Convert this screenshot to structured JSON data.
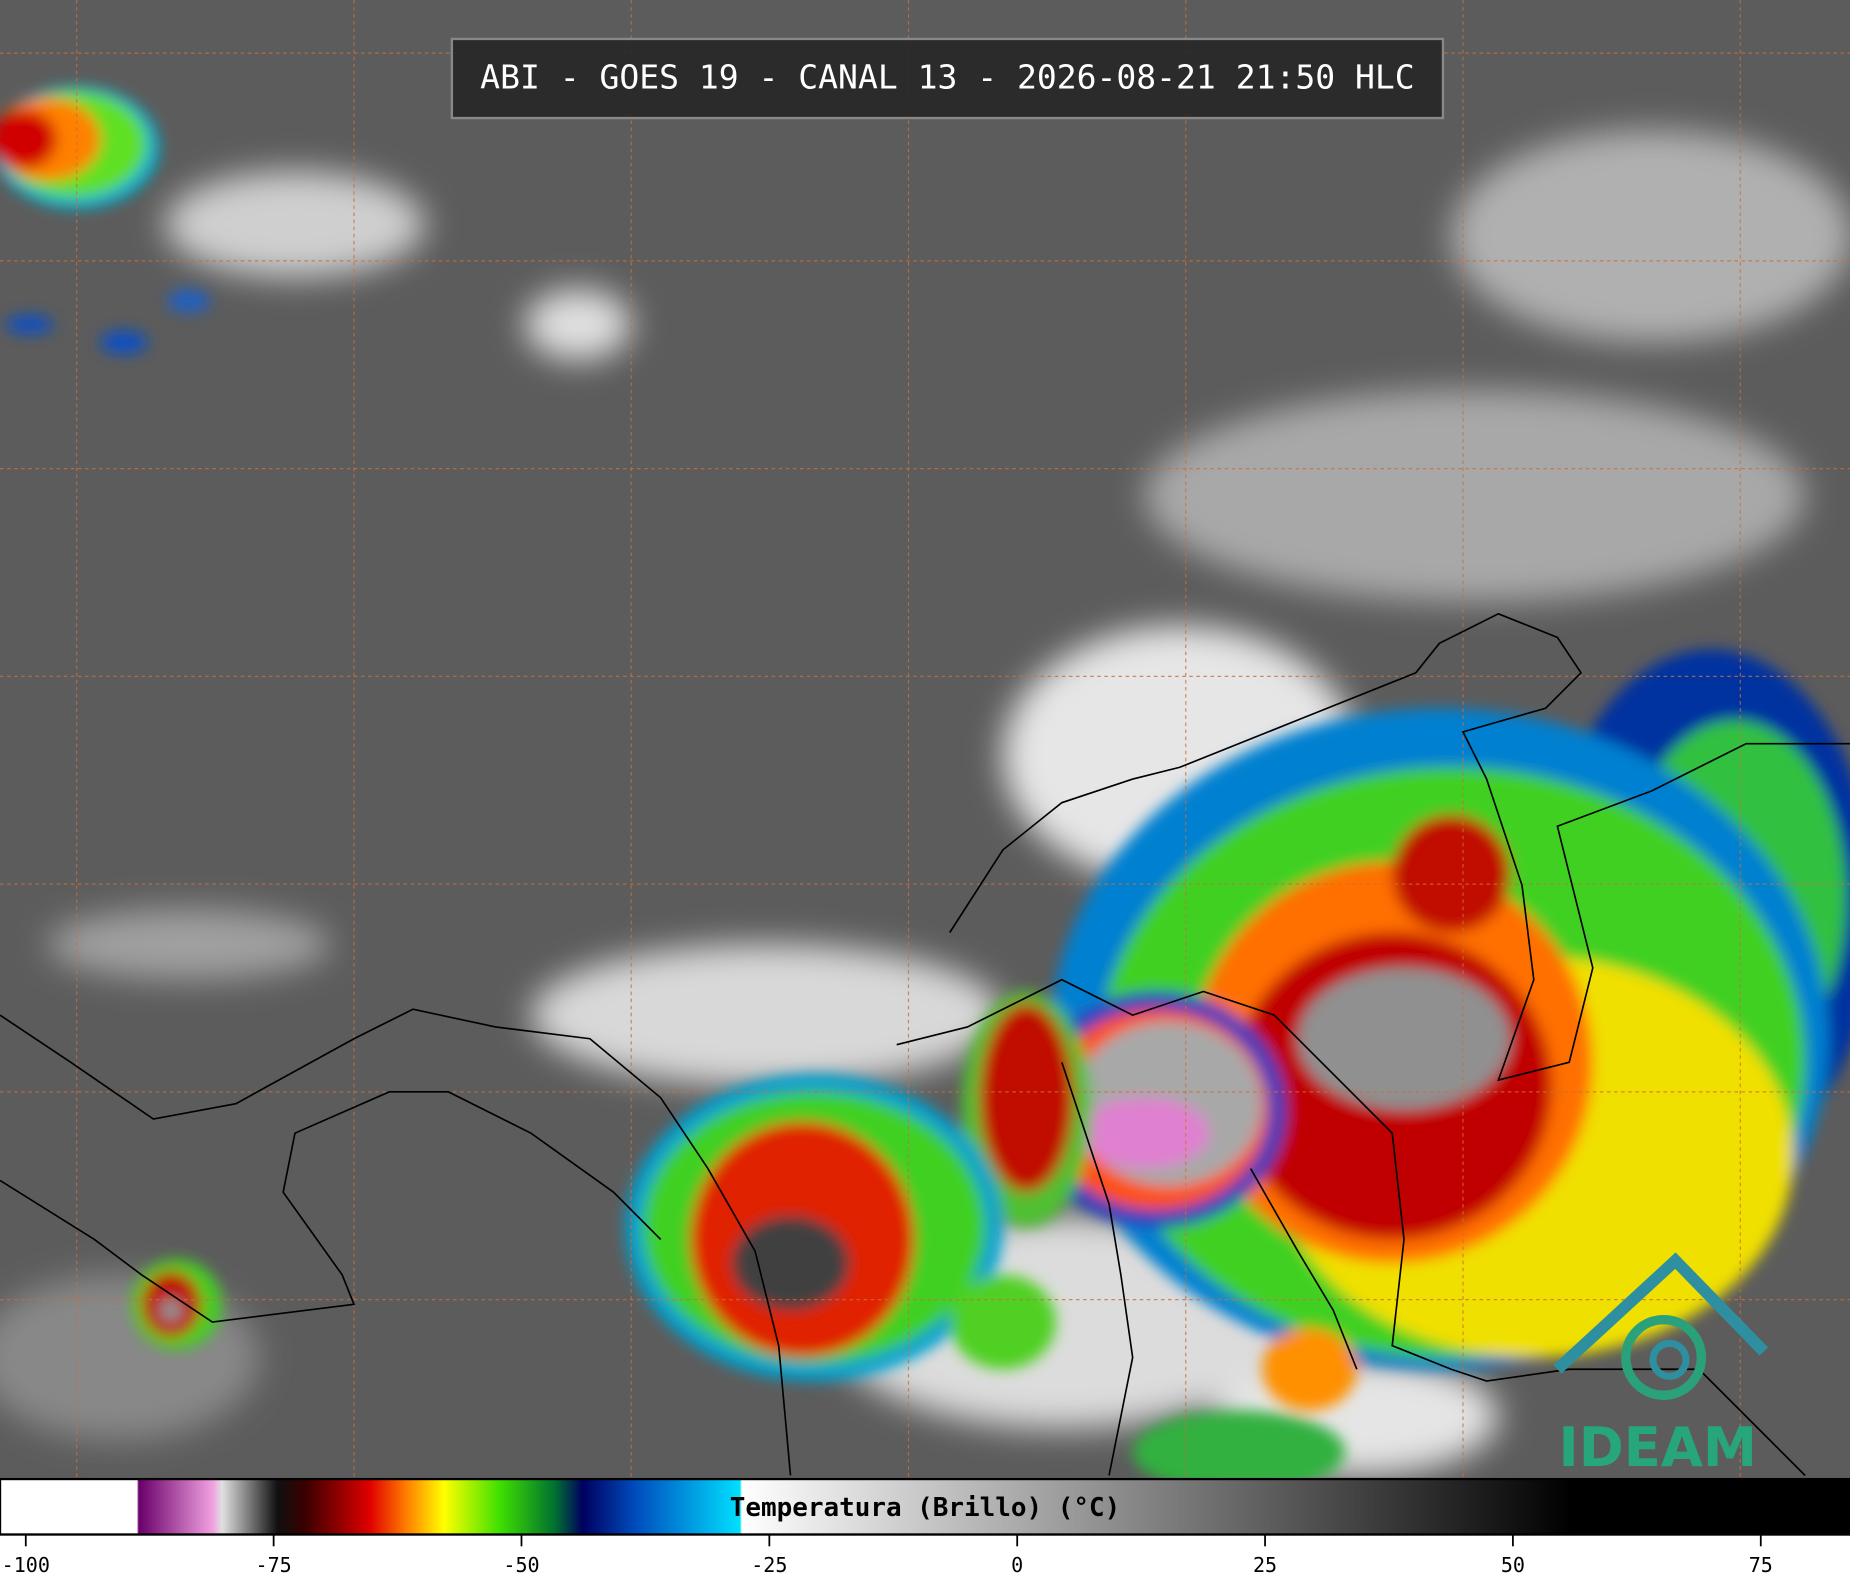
{
  "header": {
    "title": "ABI - GOES 19 - CANAL 13 - 2026-08-21 21:50 HLC"
  },
  "colorbar": {
    "label": "Temperatura (Brillo) (°C)",
    "lim": [
      -102.6,
      84
    ],
    "ticks": [
      -100,
      -75,
      -50,
      -25,
      0,
      25,
      50,
      75
    ]
  },
  "logo": {
    "text": "IDEAM"
  }
}
